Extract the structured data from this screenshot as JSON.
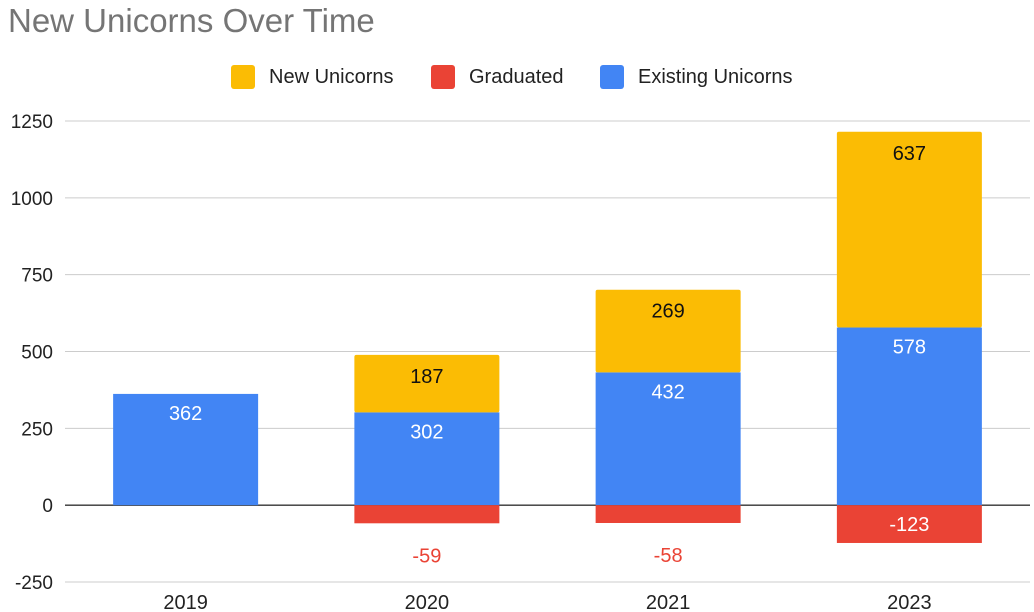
{
  "chart_data": {
    "type": "bar",
    "stacked": true,
    "title": "New Unicorns Over Time",
    "categories": [
      "2019",
      "2020",
      "2021",
      "2023"
    ],
    "series": [
      {
        "name": "New Unicorns",
        "color": "#FBBC04",
        "values": [
          0,
          187,
          269,
          637
        ],
        "labels": [
          "",
          "187",
          "269",
          "637"
        ]
      },
      {
        "name": "Graduated",
        "color": "#EA4335",
        "values": [
          0,
          -59,
          -58,
          -123
        ],
        "labels": [
          "",
          "-59",
          "-58",
          "-123"
        ]
      },
      {
        "name": "Existing Unicorns",
        "color": "#4285F4",
        "values": [
          362,
          302,
          432,
          578
        ],
        "labels": [
          "362",
          "302",
          "432",
          "578"
        ]
      }
    ],
    "ylim": [
      -250,
      1250
    ],
    "yticks": [
      "-250",
      "0",
      "250",
      "500",
      "750",
      "1000",
      "1250"
    ],
    "grid": true,
    "legend_position": "top"
  }
}
